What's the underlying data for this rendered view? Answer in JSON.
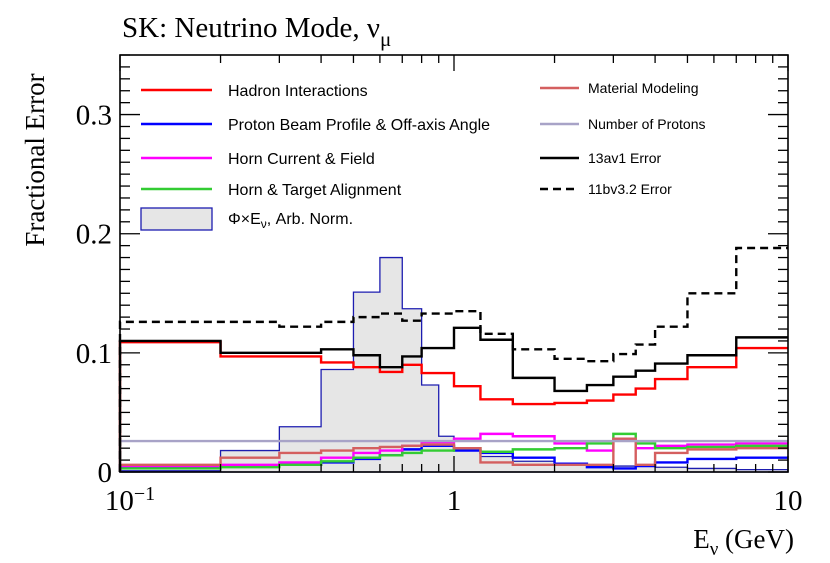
{
  "chart_data": {
    "type": "line",
    "title": "SK: Neutrino Mode, ν",
    "title_sub": "μ",
    "xlabel": "E",
    "xlabel_sub": "ν",
    "xlabel_unit": " (GeV)",
    "ylabel": "Fractional Error",
    "xscale": "log",
    "xlim": [
      0.1,
      10
    ],
    "ylim": [
      0,
      0.35
    ],
    "x_ticks": [
      {
        "value": 0.1,
        "label": "10",
        "sup": "−1"
      },
      {
        "value": 1,
        "label": "1",
        "sup": ""
      },
      {
        "value": 10,
        "label": "10",
        "sup": ""
      }
    ],
    "y_ticks": [
      {
        "value": 0,
        "label": "0"
      },
      {
        "value": 0.1,
        "label": "0.1"
      },
      {
        "value": 0.2,
        "label": "0.2"
      },
      {
        "value": 0.3,
        "label": "0.3"
      }
    ],
    "bin_edges": [
      0.1,
      0.2,
      0.3,
      0.4,
      0.5,
      0.6,
      0.7,
      0.8,
      1.0,
      1.2,
      1.5,
      2.0,
      2.5,
      3.0,
      3.5,
      4.0,
      5.0,
      7.0,
      10.0
    ],
    "series": [
      {
        "name": "Hadron Interactions",
        "color": "#ff0000",
        "style": "solid",
        "values": [
          0.109,
          0.097,
          0.097,
          0.092,
          0.088,
          0.084,
          0.09,
          0.083,
          0.072,
          0.061,
          0.057,
          0.058,
          0.06,
          0.065,
          0.07,
          0.078,
          0.088,
          0.104
        ]
      },
      {
        "name": "Proton Beam Profile & Off-axis Angle",
        "color": "#0000ff",
        "style": "solid",
        "values": [
          0.004,
          0.005,
          0.006,
          0.008,
          0.011,
          0.014,
          0.019,
          0.022,
          0.018,
          0.016,
          0.012,
          0.007,
          0.004,
          0.003,
          0.005,
          0.008,
          0.011,
          0.012
        ]
      },
      {
        "name": "Horn Current & Field",
        "color": "#ff00ff",
        "style": "solid",
        "values": [
          0.005,
          0.006,
          0.008,
          0.012,
          0.016,
          0.018,
          0.022,
          0.025,
          0.028,
          0.032,
          0.03,
          0.024,
          0.018,
          0.027,
          0.02,
          0.022,
          0.023,
          0.024
        ]
      },
      {
        "name": "Horn & Target Alignment",
        "color": "#33cc33",
        "style": "solid",
        "values": [
          0.003,
          0.004,
          0.006,
          0.009,
          0.012,
          0.014,
          0.016,
          0.018,
          0.02,
          0.017,
          0.019,
          0.02,
          0.024,
          0.032,
          0.024,
          0.02,
          0.021,
          0.022
        ]
      },
      {
        "name": "Material Modeling",
        "color": "#d45f5f",
        "style": "solid",
        "values": [
          0.006,
          0.012,
          0.016,
          0.018,
          0.02,
          0.021,
          0.022,
          0.023,
          0.02,
          0.008,
          0.006,
          0.006,
          0.006,
          0.028,
          0.006,
          0.016,
          0.019,
          0.02
        ]
      },
      {
        "name": "Number of Protons",
        "color": "#a8a3c7",
        "style": "solid",
        "values": [
          0.026,
          0.026,
          0.026,
          0.026,
          0.026,
          0.026,
          0.026,
          0.026,
          0.026,
          0.026,
          0.026,
          0.026,
          0.026,
          0.026,
          0.026,
          0.026,
          0.026,
          0.026
        ]
      },
      {
        "name": "13av1 Error",
        "color": "#000000",
        "style": "solid",
        "values": [
          0.11,
          0.1,
          0.1,
          0.103,
          0.098,
          0.088,
          0.097,
          0.104,
          0.121,
          0.111,
          0.079,
          0.068,
          0.073,
          0.08,
          0.085,
          0.091,
          0.098,
          0.113
        ]
      },
      {
        "name": "11bv3.2 Error",
        "color": "#000000",
        "style": "dashed",
        "values": [
          0.126,
          0.126,
          0.122,
          0.126,
          0.13,
          0.133,
          0.127,
          0.133,
          0.135,
          0.116,
          0.103,
          0.095,
          0.093,
          0.099,
          0.107,
          0.122,
          0.15,
          0.188
        ]
      }
    ],
    "flux_histogram": {
      "name": "Φ×E",
      "name_sub": "ν",
      "name_suffix": ", Arb. Norm.",
      "fill": "#e6e6e6",
      "stroke": "#1d1db0",
      "bin_edges": [
        0.1,
        0.2,
        0.3,
        0.4,
        0.5,
        0.6,
        0.7,
        0.8,
        0.9,
        1.0,
        1.2,
        1.5,
        2.0,
        2.5,
        3.0,
        4.0,
        5.0,
        7.0,
        10.0
      ],
      "values": [
        0.001,
        0.018,
        0.038,
        0.086,
        0.151,
        0.18,
        0.137,
        0.073,
        0.03,
        0.018,
        0.013,
        0.009,
        0.007,
        0.006,
        0.005,
        0.004,
        0.003,
        0.002
      ]
    },
    "legend": {
      "left": [
        "Hadron Interactions",
        "Proton Beam Profile & Off-axis Angle",
        "Horn Current & Field",
        "Horn & Target Alignment"
      ],
      "right": [
        "Material Modeling",
        "Number of Protons",
        "13av1 Error",
        "11bv3.2 Error"
      ],
      "placement": "top"
    }
  }
}
